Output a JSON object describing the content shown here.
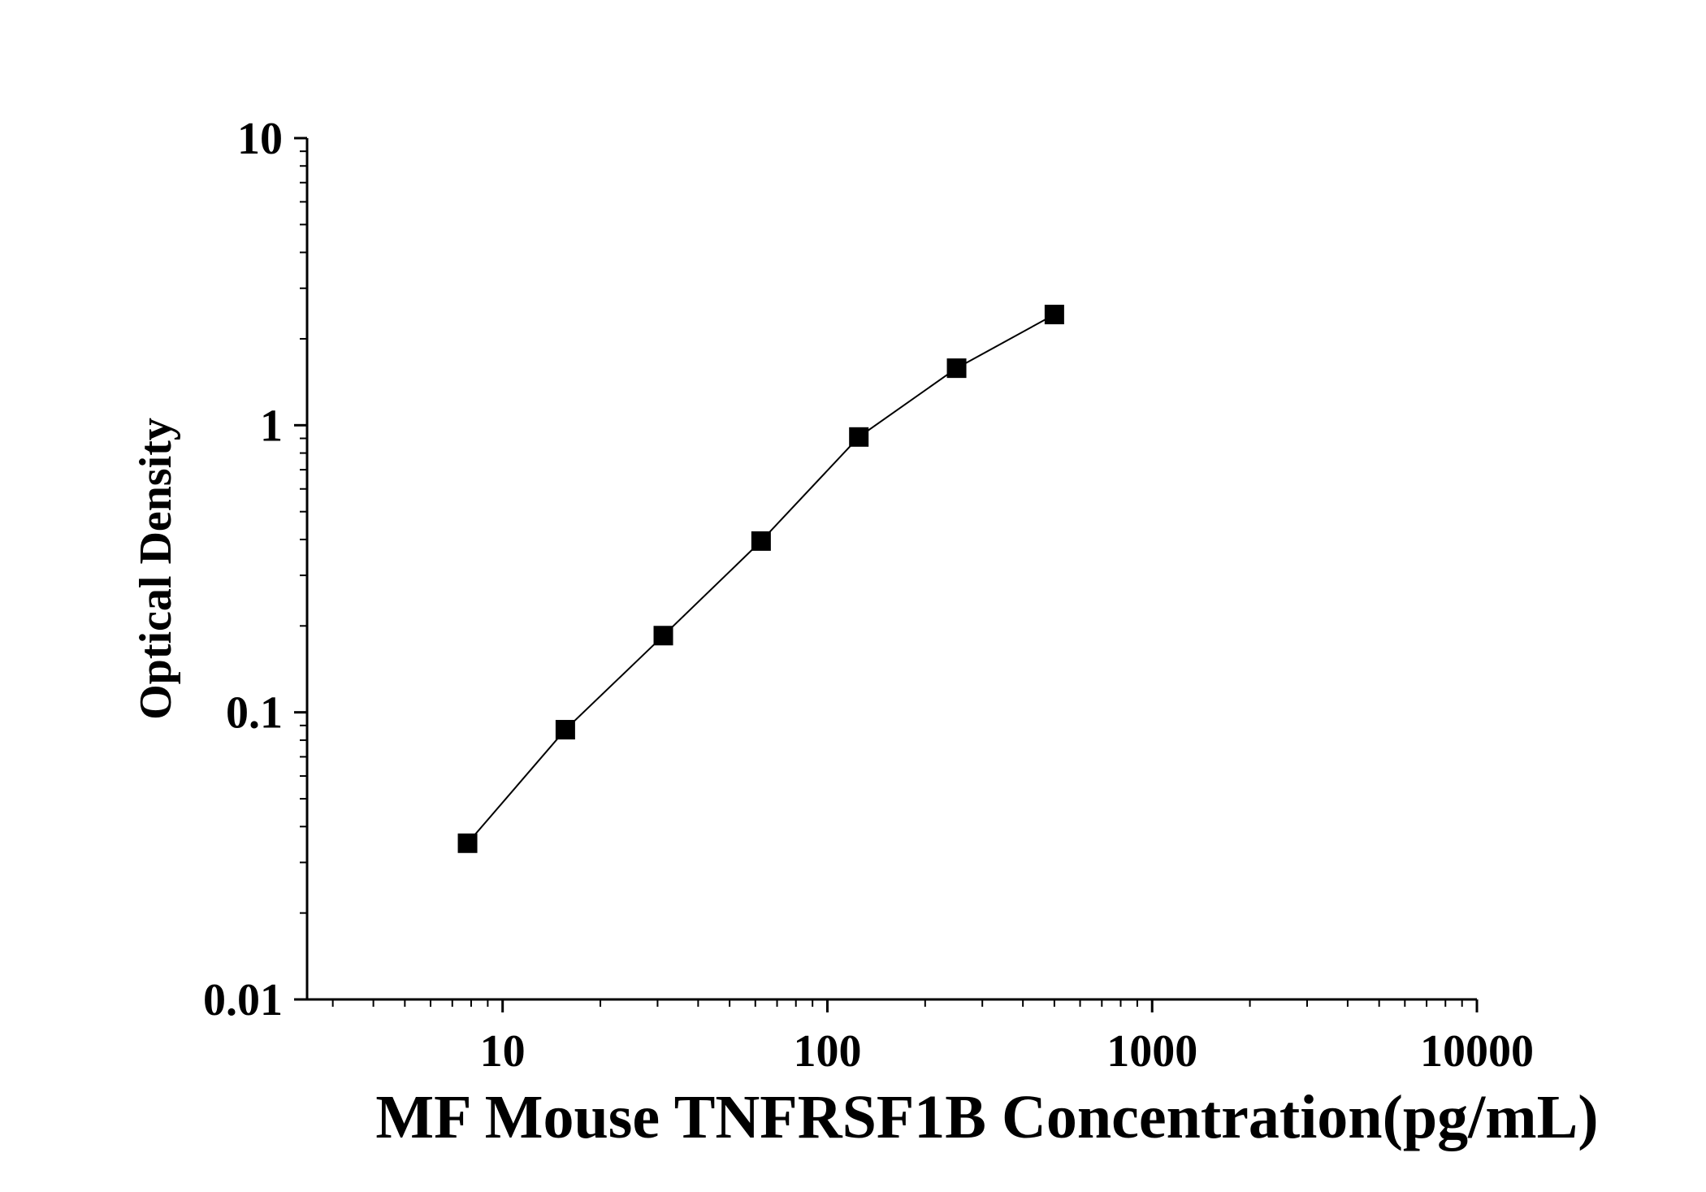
{
  "chart_data": {
    "type": "scatter",
    "title": "",
    "xlabel": "MF Mouse TNFRSF1B Concentration(pg/mL)",
    "ylabel": "Optical Density",
    "x_scale": "log",
    "y_scale": "log",
    "xlim": [
      2.5,
      10000
    ],
    "ylim": [
      0.01,
      10
    ],
    "x_ticks": [
      {
        "value": 10,
        "label": "10"
      },
      {
        "value": 100,
        "label": "100"
      },
      {
        "value": 1000,
        "label": "1000"
      },
      {
        "value": 10000,
        "label": "10000"
      }
    ],
    "y_ticks": [
      {
        "value": 0.01,
        "label": "0.01"
      },
      {
        "value": 0.1,
        "label": "0.1"
      },
      {
        "value": 1,
        "label": "1"
      },
      {
        "value": 10,
        "label": "10"
      }
    ],
    "grid": false,
    "legend": "none",
    "marker": "square",
    "connected_by_line": true,
    "series": [
      {
        "x": [
          7.8,
          15.6,
          31.25,
          62.5,
          125,
          250,
          500
        ],
        "y": [
          0.035,
          0.087,
          0.185,
          0.395,
          0.91,
          1.58,
          2.43
        ]
      }
    ],
    "colors": {
      "marker": "#000000",
      "line": "#000000",
      "axis": "#000000"
    }
  }
}
